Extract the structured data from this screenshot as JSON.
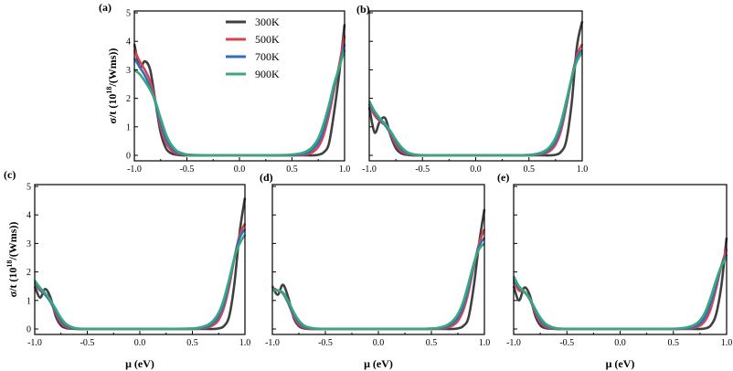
{
  "figure": {
    "series_styles": [
      {
        "name": "300K",
        "color": "#404040"
      },
      {
        "name": "500K",
        "color": "#d9434f"
      },
      {
        "name": "700K",
        "color": "#2f6fbd"
      },
      {
        "name": "900K",
        "color": "#3aa87a"
      }
    ],
    "legend": {
      "entries": [
        "300K",
        "500K",
        "700K",
        "900K"
      ],
      "placement": "top-right of panel (a)"
    }
  },
  "chart_data": [
    {
      "type": "line",
      "panel": "(a)",
      "xlabel": "",
      "ylabel_main": "σ/t  (10",
      "ylabel_sup": "18",
      "ylabel_tail": "/(Wms))",
      "xlim": [
        -1.0,
        1.0
      ],
      "ylim": [
        0,
        5
      ],
      "xticks": [
        "-1.0",
        "-0.5",
        "0.0",
        "0.5",
        "1.0"
      ],
      "yticks": [
        "0",
        "1",
        "2",
        "3",
        "4",
        "5"
      ],
      "x": [
        -1.0,
        -0.95,
        -0.9,
        -0.85,
        -0.8,
        -0.75,
        -0.7,
        -0.65,
        -0.6,
        -0.55,
        -0.5,
        -0.4,
        -0.2,
        0.0,
        0.2,
        0.4,
        0.5,
        0.55,
        0.6,
        0.65,
        0.7,
        0.75,
        0.8,
        0.85,
        0.9,
        0.95,
        1.0
      ],
      "series": [
        {
          "name": "300K",
          "values": [
            3.9,
            3.1,
            3.3,
            3.0,
            1.9,
            0.8,
            0.25,
            0.07,
            0.02,
            0.0,
            0.0,
            0.0,
            0.0,
            0.0,
            0.0,
            0.0,
            0.0,
            0.0,
            0.0,
            0.0,
            0.0,
            0.02,
            0.1,
            0.4,
            1.5,
            2.9,
            4.6
          ]
        },
        {
          "name": "500K",
          "values": [
            3.7,
            3.3,
            3.0,
            2.6,
            1.9,
            1.0,
            0.45,
            0.18,
            0.07,
            0.03,
            0.01,
            0.0,
            0.0,
            0.0,
            0.0,
            0.0,
            0.0,
            0.01,
            0.02,
            0.05,
            0.12,
            0.3,
            0.7,
            1.4,
            2.3,
            3.2,
            4.2
          ]
        },
        {
          "name": "700K",
          "values": [
            3.4,
            3.1,
            2.8,
            2.4,
            1.85,
            1.15,
            0.6,
            0.28,
            0.12,
            0.05,
            0.02,
            0.0,
            0.0,
            0.0,
            0.0,
            0.0,
            0.01,
            0.02,
            0.05,
            0.1,
            0.22,
            0.45,
            0.9,
            1.6,
            2.4,
            3.1,
            3.9
          ]
        },
        {
          "name": "900K",
          "values": [
            3.0,
            2.85,
            2.6,
            2.3,
            1.9,
            1.3,
            0.75,
            0.38,
            0.17,
            0.08,
            0.03,
            0.01,
            0.0,
            0.0,
            0.0,
            0.01,
            0.03,
            0.05,
            0.09,
            0.17,
            0.32,
            0.6,
            1.1,
            1.75,
            2.5,
            3.1,
            3.7
          ]
        }
      ]
    },
    {
      "type": "line",
      "panel": "(b)",
      "xlim": [
        -1.0,
        1.0
      ],
      "ylim": [
        0,
        5
      ],
      "xticks": [
        "-1.0",
        "-0.5",
        "0.0",
        "0.5",
        "1.0"
      ],
      "x": [
        -1.0,
        -0.95,
        -0.9,
        -0.85,
        -0.8,
        -0.75,
        -0.7,
        -0.65,
        -0.6,
        -0.55,
        -0.5,
        -0.4,
        -0.2,
        0.0,
        0.2,
        0.4,
        0.5,
        0.55,
        0.6,
        0.65,
        0.7,
        0.75,
        0.8,
        0.85,
        0.9,
        0.95,
        1.0
      ],
      "series": [
        {
          "name": "300K",
          "values": [
            1.7,
            0.8,
            1.2,
            1.3,
            0.7,
            0.25,
            0.07,
            0.02,
            0.0,
            0.0,
            0.0,
            0.0,
            0.0,
            0.0,
            0.0,
            0.0,
            0.0,
            0.0,
            0.0,
            0.0,
            0.0,
            0.02,
            0.12,
            0.5,
            1.8,
            3.8,
            4.7
          ]
        },
        {
          "name": "500K",
          "values": [
            1.8,
            1.4,
            1.2,
            1.05,
            0.75,
            0.38,
            0.15,
            0.05,
            0.02,
            0.0,
            0.0,
            0.0,
            0.0,
            0.0,
            0.0,
            0.0,
            0.0,
            0.01,
            0.03,
            0.07,
            0.16,
            0.38,
            0.85,
            1.7,
            2.7,
            3.5,
            3.9
          ]
        },
        {
          "name": "700K",
          "values": [
            1.8,
            1.5,
            1.25,
            1.05,
            0.8,
            0.48,
            0.22,
            0.09,
            0.03,
            0.01,
            0.0,
            0.0,
            0.0,
            0.0,
            0.0,
            0.0,
            0.01,
            0.02,
            0.05,
            0.11,
            0.24,
            0.5,
            1.0,
            1.8,
            2.7,
            3.4,
            3.7
          ]
        },
        {
          "name": "900K",
          "values": [
            1.9,
            1.55,
            1.3,
            1.1,
            0.85,
            0.55,
            0.3,
            0.13,
            0.05,
            0.02,
            0.01,
            0.0,
            0.0,
            0.0,
            0.0,
            0.0,
            0.02,
            0.04,
            0.08,
            0.16,
            0.32,
            0.62,
            1.15,
            1.9,
            2.7,
            3.3,
            3.6
          ]
        }
      ]
    },
    {
      "type": "line",
      "panel": "(c)",
      "xlabel": "μ (eV)",
      "ylabel_main": "σ/t  (10",
      "ylabel_sup": "18",
      "ylabel_tail": "/(Wms))",
      "xlim": [
        -1.0,
        1.0
      ],
      "ylim": [
        0,
        5
      ],
      "xticks": [
        "-1.0",
        "-0.5",
        "0.0",
        "0.5",
        "1.0"
      ],
      "yticks": [
        "0",
        "1",
        "2",
        "3",
        "4",
        "5"
      ],
      "x": [
        -1.0,
        -0.95,
        -0.9,
        -0.85,
        -0.8,
        -0.75,
        -0.7,
        -0.65,
        -0.6,
        -0.55,
        -0.5,
        -0.4,
        -0.2,
        0.0,
        0.2,
        0.4,
        0.5,
        0.55,
        0.6,
        0.65,
        0.7,
        0.75,
        0.8,
        0.85,
        0.9,
        0.95,
        1.0
      ],
      "series": [
        {
          "name": "300K",
          "values": [
            1.5,
            1.1,
            1.4,
            1.1,
            0.45,
            0.12,
            0.03,
            0.01,
            0.0,
            0.0,
            0.0,
            0.0,
            0.0,
            0.0,
            0.0,
            0.0,
            0.0,
            0.0,
            0.0,
            0.0,
            0.0,
            0.02,
            0.1,
            0.45,
            1.6,
            3.4,
            4.6
          ]
        },
        {
          "name": "500K",
          "values": [
            1.6,
            1.35,
            1.2,
            0.95,
            0.55,
            0.22,
            0.07,
            0.02,
            0.01,
            0.0,
            0.0,
            0.0,
            0.0,
            0.0,
            0.0,
            0.0,
            0.0,
            0.01,
            0.03,
            0.06,
            0.14,
            0.32,
            0.75,
            1.5,
            2.5,
            3.3,
            3.7
          ]
        },
        {
          "name": "700K",
          "values": [
            1.65,
            1.4,
            1.2,
            0.95,
            0.62,
            0.3,
            0.12,
            0.04,
            0.01,
            0.0,
            0.0,
            0.0,
            0.0,
            0.0,
            0.0,
            0.0,
            0.01,
            0.02,
            0.05,
            0.1,
            0.22,
            0.45,
            0.9,
            1.65,
            2.5,
            3.2,
            3.5
          ]
        },
        {
          "name": "900K",
          "values": [
            1.7,
            1.45,
            1.25,
            1.0,
            0.7,
            0.38,
            0.17,
            0.07,
            0.02,
            0.01,
            0.0,
            0.0,
            0.0,
            0.0,
            0.0,
            0.01,
            0.02,
            0.04,
            0.08,
            0.15,
            0.3,
            0.57,
            1.05,
            1.75,
            2.5,
            3.0,
            3.3
          ]
        }
      ]
    },
    {
      "type": "line",
      "panel": "(d)",
      "xlabel": "μ (eV)",
      "xlim": [
        -1.0,
        1.0
      ],
      "ylim": [
        0,
        5
      ],
      "xticks": [
        "-1.0",
        "-0.5",
        "0.0",
        "0.5",
        "1.0"
      ],
      "x": [
        -1.0,
        -0.95,
        -0.9,
        -0.85,
        -0.8,
        -0.75,
        -0.7,
        -0.65,
        -0.6,
        -0.55,
        -0.5,
        -0.4,
        -0.2,
        0.0,
        0.2,
        0.4,
        0.5,
        0.55,
        0.6,
        0.65,
        0.7,
        0.75,
        0.8,
        0.85,
        0.9,
        0.95,
        1.0
      ],
      "series": [
        {
          "name": "300K",
          "values": [
            1.5,
            1.2,
            1.55,
            1.1,
            0.4,
            0.1,
            0.02,
            0.0,
            0.0,
            0.0,
            0.0,
            0.0,
            0.0,
            0.0,
            0.0,
            0.0,
            0.0,
            0.0,
            0.0,
            0.0,
            0.0,
            0.02,
            0.1,
            0.4,
            1.5,
            3.0,
            4.2
          ]
        },
        {
          "name": "500K",
          "values": [
            1.45,
            1.35,
            1.25,
            0.9,
            0.45,
            0.16,
            0.05,
            0.01,
            0.0,
            0.0,
            0.0,
            0.0,
            0.0,
            0.0,
            0.0,
            0.0,
            0.0,
            0.01,
            0.02,
            0.05,
            0.12,
            0.28,
            0.65,
            1.3,
            2.2,
            3.0,
            3.5
          ]
        },
        {
          "name": "700K",
          "values": [
            1.4,
            1.35,
            1.25,
            0.92,
            0.52,
            0.23,
            0.08,
            0.03,
            0.01,
            0.0,
            0.0,
            0.0,
            0.0,
            0.0,
            0.0,
            0.0,
            0.01,
            0.02,
            0.04,
            0.09,
            0.2,
            0.4,
            0.8,
            1.45,
            2.25,
            2.9,
            3.2
          ]
        },
        {
          "name": "900K",
          "values": [
            1.35,
            1.35,
            1.28,
            0.98,
            0.6,
            0.3,
            0.12,
            0.05,
            0.02,
            0.01,
            0.0,
            0.0,
            0.0,
            0.0,
            0.0,
            0.0,
            0.02,
            0.03,
            0.07,
            0.14,
            0.28,
            0.52,
            0.95,
            1.6,
            2.3,
            2.8,
            3.0
          ]
        }
      ]
    },
    {
      "type": "line",
      "panel": "(e)",
      "xlabel": "μ (eV)",
      "xlim": [
        -1.0,
        1.0
      ],
      "ylim": [
        0,
        5
      ],
      "xticks": [
        "-1.0",
        "-0.5",
        "0.0",
        "0.5",
        "1.0"
      ],
      "x": [
        -1.0,
        -0.95,
        -0.9,
        -0.85,
        -0.8,
        -0.75,
        -0.7,
        -0.65,
        -0.6,
        -0.55,
        -0.5,
        -0.4,
        -0.2,
        0.0,
        0.2,
        0.4,
        0.5,
        0.55,
        0.6,
        0.65,
        0.7,
        0.75,
        0.8,
        0.85,
        0.9,
        0.95,
        1.0
      ],
      "series": [
        {
          "name": "300K",
          "values": [
            1.5,
            1.0,
            1.45,
            1.2,
            0.5,
            0.13,
            0.03,
            0.01,
            0.0,
            0.0,
            0.0,
            0.0,
            0.0,
            0.0,
            0.0,
            0.0,
            0.0,
            0.0,
            0.0,
            0.0,
            0.0,
            0.0,
            0.02,
            0.12,
            0.5,
            1.5,
            3.2
          ]
        },
        {
          "name": "500K",
          "values": [
            1.65,
            1.35,
            1.3,
            1.05,
            0.6,
            0.24,
            0.08,
            0.02,
            0.01,
            0.0,
            0.0,
            0.0,
            0.0,
            0.0,
            0.0,
            0.0,
            0.0,
            0.0,
            0.01,
            0.02,
            0.05,
            0.12,
            0.3,
            0.7,
            1.4,
            2.2,
            2.8
          ]
        },
        {
          "name": "700K",
          "values": [
            1.75,
            1.45,
            1.3,
            1.05,
            0.66,
            0.32,
            0.13,
            0.05,
            0.02,
            0.01,
            0.0,
            0.0,
            0.0,
            0.0,
            0.0,
            0.0,
            0.0,
            0.01,
            0.02,
            0.04,
            0.09,
            0.2,
            0.45,
            0.9,
            1.55,
            2.2,
            2.6
          ]
        },
        {
          "name": "900K",
          "values": [
            1.85,
            1.5,
            1.32,
            1.08,
            0.72,
            0.4,
            0.18,
            0.08,
            0.03,
            0.01,
            0.0,
            0.0,
            0.0,
            0.0,
            0.0,
            0.0,
            0.01,
            0.02,
            0.04,
            0.08,
            0.15,
            0.3,
            0.6,
            1.1,
            1.7,
            2.2,
            2.5
          ]
        }
      ]
    }
  ]
}
